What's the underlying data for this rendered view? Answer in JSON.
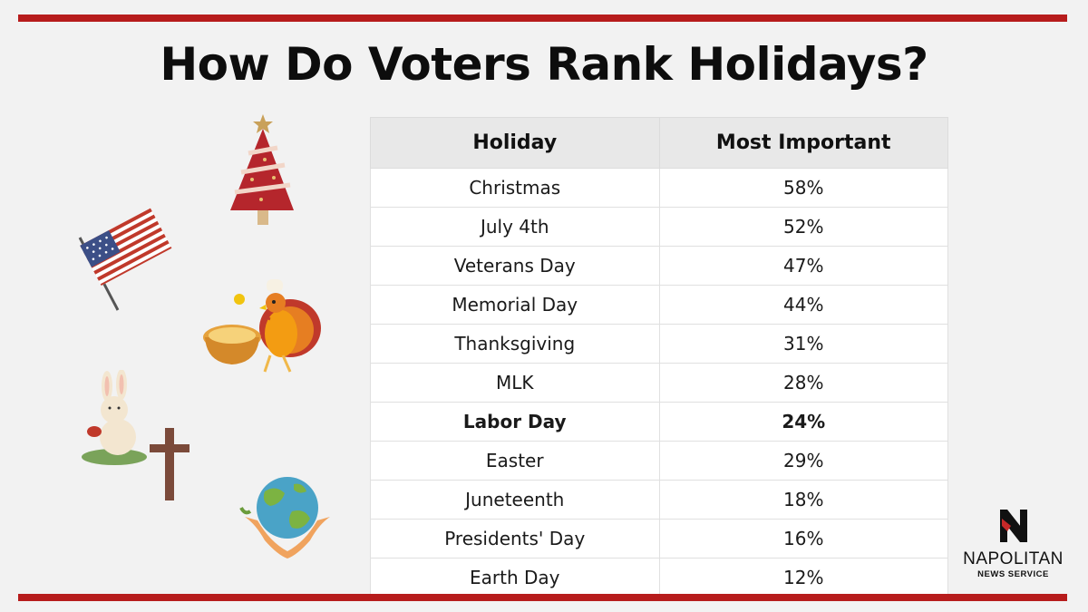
{
  "title": "How Do Voters Rank Holidays?",
  "chart_data": {
    "type": "table",
    "title": "How Do Voters Rank Holidays?",
    "columns": [
      "Holiday",
      "Most Important"
    ],
    "rows": [
      {
        "holiday": "Christmas",
        "value": "58%",
        "bold": false
      },
      {
        "holiday": "July 4th",
        "value": "52%",
        "bold": false
      },
      {
        "holiday": "Veterans Day",
        "value": "47%",
        "bold": false
      },
      {
        "holiday": "Memorial Day",
        "value": "44%",
        "bold": false
      },
      {
        "holiday": "Thanksgiving",
        "value": "31%",
        "bold": false
      },
      {
        "holiday": "MLK",
        "value": "28%",
        "bold": false
      },
      {
        "holiday": "Labor Day",
        "value": "24%",
        "bold": true
      },
      {
        "holiday": "Easter",
        "value": "29%",
        "bold": false
      },
      {
        "holiday": "Juneteenth",
        "value": "18%",
        "bold": false
      },
      {
        "holiday": "Presidents' Day",
        "value": "16%",
        "bold": false
      },
      {
        "holiday": "Earth Day",
        "value": "12%",
        "bold": false
      }
    ]
  },
  "logo": {
    "name": "NAPOLITAN",
    "subtitle": "NEWS SERVICE"
  },
  "illustrations": [
    "christmas-tree-icon",
    "american-flag-icon",
    "turkey-icon",
    "easter-bunny-icon",
    "cross-icon",
    "earth-hands-icon"
  ],
  "colors": {
    "accent": "#b71c1c",
    "background": "#f2f2f2",
    "header_fill": "#e8e8e8"
  }
}
